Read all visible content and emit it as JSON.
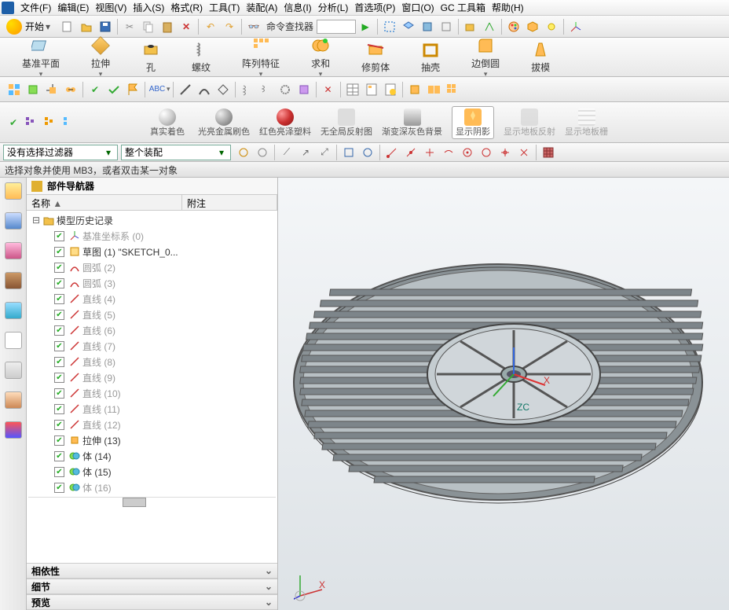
{
  "menu": {
    "items": [
      "文件(F)",
      "编辑(E)",
      "视图(V)",
      "插入(S)",
      "格式(R)",
      "工具(T)",
      "装配(A)",
      "信息(I)",
      "分析(L)",
      "首选项(P)",
      "窗口(O)",
      "GC 工具箱",
      "帮助(H)"
    ]
  },
  "start": {
    "label": "开始"
  },
  "finder": {
    "label": "命令查找器"
  },
  "ribbon": {
    "items": [
      "基准平面",
      "拉伸",
      "孔",
      "螺纹",
      "阵列特征",
      "求和",
      "修剪体",
      "抽壳",
      "边倒圆",
      "拔模"
    ]
  },
  "tb3": {
    "items": [
      "真实着色",
      "光亮金属刷色",
      "红色亮泽塑料",
      "无全局反射图",
      "渐变深灰色背景",
      "显示阴影",
      "显示地板反射",
      "显示地板栅"
    ],
    "colors": [
      "#d0d0d0",
      "#b8b8b8",
      "#c03030",
      "#888",
      "#888",
      "#ffd070",
      "#aaa",
      "#ccc"
    ],
    "active": 5
  },
  "filter": {
    "noFilter": "没有选择过滤器",
    "assembly": "整个装配"
  },
  "status": {
    "text": "选择对象并使用 MB3，或者双击某一对象"
  },
  "nav": {
    "title": "部件导航器",
    "col1": "名称",
    "col2": "附注",
    "root": "模型历史记录",
    "items": [
      {
        "label": "基准坐标系 (0)",
        "gray": true,
        "ico": "csys"
      },
      {
        "label": "草图 (1) \"SKETCH_0...",
        "ico": "sketch"
      },
      {
        "label": "圆弧 (2)",
        "gray": true,
        "ico": "arc"
      },
      {
        "label": "圆弧 (3)",
        "gray": true,
        "ico": "arc"
      },
      {
        "label": "直线 (4)",
        "gray": true,
        "ico": "line"
      },
      {
        "label": "直线 (5)",
        "gray": true,
        "ico": "line"
      },
      {
        "label": "直线 (6)",
        "gray": true,
        "ico": "line"
      },
      {
        "label": "直线 (7)",
        "gray": true,
        "ico": "line"
      },
      {
        "label": "直线 (8)",
        "gray": true,
        "ico": "line"
      },
      {
        "label": "直线 (9)",
        "gray": true,
        "ico": "line"
      },
      {
        "label": "直线 (10)",
        "gray": true,
        "ico": "line"
      },
      {
        "label": "直线 (11)",
        "gray": true,
        "ico": "line"
      },
      {
        "label": "直线 (12)",
        "gray": true,
        "ico": "line"
      },
      {
        "label": "拉伸 (13)",
        "ico": "extrude"
      },
      {
        "label": "体 (14)",
        "ico": "body"
      },
      {
        "label": "体 (15)",
        "ico": "body"
      },
      {
        "label": "体 (16)",
        "gray": true,
        "ico": "body"
      }
    ],
    "sections": [
      "相依性",
      "细节",
      "预览"
    ]
  },
  "axis": {
    "x": "X",
    "z": "ZC"
  }
}
